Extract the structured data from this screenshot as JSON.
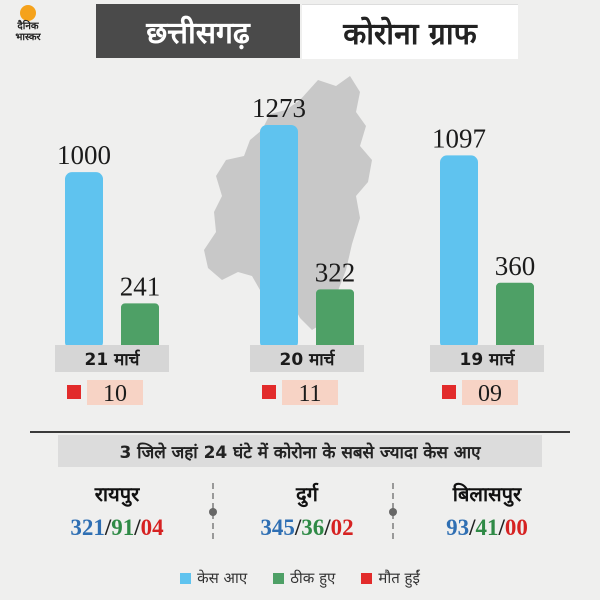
{
  "logo": {
    "line1": "दैनिक",
    "line2": "भास्कर"
  },
  "title": {
    "state": "छत्तीसगढ़",
    "subject": "कोरोना ग्राफ"
  },
  "colors": {
    "cases": "#5fc3ef",
    "recovered": "#4ea066",
    "deaths": "#e22b2b",
    "date_bar": "#d6d6d6",
    "death_box": "#f7d3c5"
  },
  "chart_data": {
    "type": "bar",
    "categories": [
      "21 मार्च",
      "20 मार्च",
      "19 मार्च"
    ],
    "series": [
      {
        "name": "केस आए",
        "values": [
          1000,
          1273,
          1097
        ],
        "labels": [
          "1000",
          "1273",
          "1097"
        ]
      },
      {
        "name": "ठीक हुए",
        "values": [
          241,
          322,
          360
        ],
        "labels": [
          "241",
          "322",
          "360"
        ]
      },
      {
        "name": "मौत हुईं",
        "values": [
          10,
          11,
          9
        ],
        "labels": [
          "10",
          "11",
          "09"
        ]
      }
    ],
    "ylim": [
      0,
      1300
    ],
    "grid": false,
    "legend": "bottom"
  },
  "districts": {
    "heading": "3 जिले जहां 24 घंटे में कोरोना के सबसे ज्यादा केस आए",
    "items": [
      {
        "name": "रायपुर",
        "cases": "321",
        "recovered": "91",
        "deaths": "04"
      },
      {
        "name": "दुर्ग",
        "cases": "345",
        "recovered": "36",
        "deaths": "02"
      },
      {
        "name": "बिलासपुर",
        "cases": "93",
        "recovered": "41",
        "deaths": "00"
      }
    ],
    "separator": "/"
  },
  "legend": [
    {
      "label": "केस आए",
      "color": "#5fc3ef"
    },
    {
      "label": "ठीक हुए",
      "color": "#4ea066"
    },
    {
      "label": "मौत हुईं",
      "color": "#e22b2b"
    }
  ]
}
